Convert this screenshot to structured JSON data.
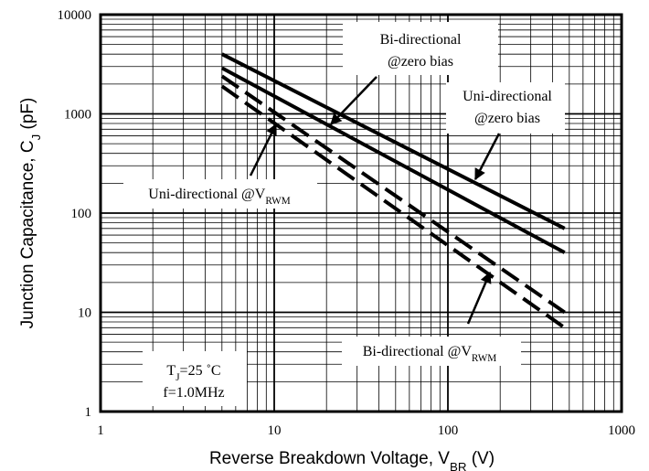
{
  "chart_data": {
    "type": "line",
    "xlabel": [
      "Reverse Breakdown Voltage, V",
      "BR",
      " (V)"
    ],
    "ylabel": [
      "Junction Capacitance, C",
      "J",
      " (pF)"
    ],
    "xscale": "log",
    "yscale": "log",
    "xlim": [
      1,
      1000
    ],
    "ylim": [
      1,
      10000
    ],
    "xticks": [
      1,
      10,
      100,
      1000
    ],
    "yticks": [
      1,
      10,
      100,
      1000,
      10000
    ],
    "xminor": [
      2,
      3,
      4,
      5,
      6,
      7,
      8,
      9,
      20,
      30,
      40,
      50,
      60,
      70,
      80,
      90,
      200,
      300,
      400,
      500,
      600,
      700,
      800,
      900
    ],
    "yminor": [
      2,
      3,
      4,
      5,
      6,
      7,
      8,
      9,
      20,
      30,
      40,
      50,
      60,
      70,
      80,
      90,
      200,
      300,
      400,
      500,
      600,
      700,
      800,
      900,
      2000,
      3000,
      4000,
      5000,
      6000,
      7000,
      8000,
      9000
    ],
    "grid": true,
    "series": [
      {
        "style": "solid",
        "color": "#000000",
        "x": [
          5,
          470
        ],
        "values": [
          4000,
          70
        ]
      },
      {
        "style": "solid",
        "color": "#000000",
        "x": [
          5,
          470
        ],
        "values": [
          2900,
          40
        ]
      },
      {
        "style": "dashed",
        "color": "#000000",
        "x": [
          5,
          470
        ],
        "values": [
          2400,
          10
        ]
      },
      {
        "style": "dashed",
        "color": "#000000",
        "x": [
          5,
          470
        ],
        "values": [
          1900,
          7
        ]
      }
    ],
    "annotations": [
      {
        "lines": [
          [
            "Bi-directional"
          ],
          [
            "@zero bias"
          ]
        ]
      },
      {
        "lines": [
          [
            "Uni-directional"
          ],
          [
            "@zero bias"
          ]
        ]
      },
      {
        "lines": [
          [
            "Uni-directional @V",
            "RWM"
          ]
        ]
      },
      {
        "lines": [
          [
            "Bi-directional @V",
            "RWM"
          ]
        ]
      },
      {
        "lines": [
          [
            "T",
            "J",
            "=25 ˚C"
          ],
          [
            "f=1.0MHz"
          ]
        ]
      }
    ]
  }
}
